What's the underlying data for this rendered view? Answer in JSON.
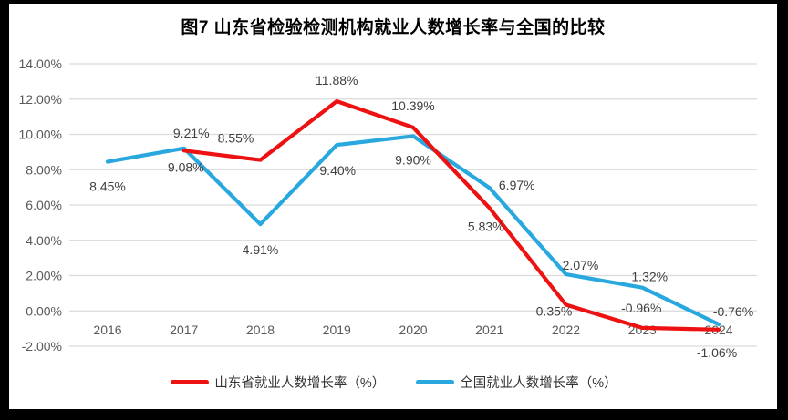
{
  "title": "图7  山东省检验检测机构就业人数增长率与全国的比较",
  "frame": {
    "border_color": "#000000",
    "background": "#FFFFFF"
  },
  "chart_data": {
    "type": "line",
    "title": "图7  山东省检验检测机构就业人数增长率与全国的比较",
    "categories": [
      "2016",
      "2017",
      "2018",
      "2019",
      "2020",
      "2021",
      "2022",
      "2023",
      "2024"
    ],
    "xlabel": "",
    "ylabel": "",
    "ylim": [
      -2,
      14
    ],
    "y_tick_step": 2,
    "y_tick_labels": [
      "14.00%",
      "12.00%",
      "10.00%",
      "8.00%",
      "6.00%",
      "4.00%",
      "2.00%",
      "0.00%",
      "-2.00%"
    ],
    "grid": true,
    "legend_position": "bottom",
    "styles": {
      "gridline_color": "#D9D9D9",
      "tick_label_color": "#595959",
      "data_label_color": "#404040",
      "title_color": "#000000"
    },
    "series": [
      {
        "name": "全国就业人数增长率（%）",
        "color": "#29A8DF",
        "values": [
          8.45,
          9.21,
          4.91,
          9.4,
          9.9,
          6.97,
          2.07,
          1.32,
          -0.76
        ],
        "point_labels": [
          "8.45%",
          "9.21%",
          "4.91%",
          "9.40%",
          "9.90%",
          "6.97%",
          "2.07%",
          "1.32%",
          "-0.76%"
        ],
        "label_offsets": [
          [
            0,
            27
          ],
          [
            8,
            -17
          ],
          [
            0,
            28
          ],
          [
            1,
            28
          ],
          [
            0,
            26
          ],
          [
            30,
            -3
          ],
          [
            16,
            -10
          ],
          [
            8,
            -12
          ],
          [
            16,
            -14
          ]
        ]
      },
      {
        "name": "山东省就业人数增长率（%）",
        "color": "#EE1111",
        "values": [
          null,
          9.08,
          8.55,
          11.88,
          10.39,
          5.83,
          0.35,
          -0.96,
          -1.06
        ],
        "point_labels": [
          "",
          "9.08%",
          "8.55%",
          "11.88%",
          "10.39%",
          "5.83%",
          "0.35%",
          "-0.96%",
          "-1.06%"
        ],
        "label_offsets": [
          [
            0,
            0
          ],
          [
            2,
            18
          ],
          [
            -27,
            -24
          ],
          [
            0,
            -23
          ],
          [
            0,
            -24
          ],
          [
            -4,
            20
          ],
          [
            -13,
            7
          ],
          [
            -1,
            -22
          ],
          [
            -2,
            25
          ]
        ]
      }
    ],
    "legend_items": [
      "山东省就业人数增长率（%）",
      "全国就业人数增长率（%）"
    ]
  }
}
